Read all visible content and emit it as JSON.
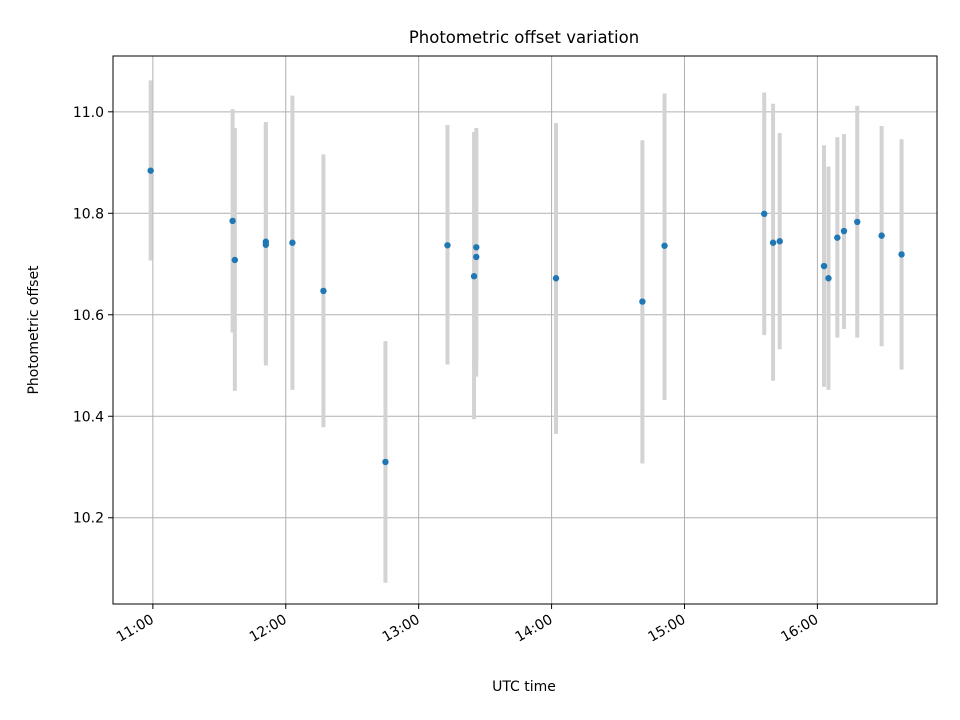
{
  "chart_data": {
    "type": "scatter",
    "title": "Photometric offset variation",
    "xlabel": "UTC time",
    "ylabel": "Photometric offset",
    "xlim": [
      "10:42",
      "16:54"
    ],
    "ylim": [
      10.03,
      11.11
    ],
    "grid": true,
    "x_ticks": [
      "11:00",
      "12:00",
      "13:00",
      "14:00",
      "15:00",
      "16:00"
    ],
    "y_ticks": [
      "10.2",
      "10.4",
      "10.6",
      "10.8",
      "11.0"
    ],
    "colors": {
      "point": "#1f77b4",
      "errorbar": "#d3d3d3",
      "grid": "#b0b0b0"
    },
    "points": [
      {
        "time": "10:59",
        "y": 10.884,
        "low": 10.707,
        "high": 11.062
      },
      {
        "time": "11:36",
        "y": 10.785,
        "low": 10.565,
        "high": 11.005
      },
      {
        "time": "11:37",
        "y": 10.708,
        "low": 10.45,
        "high": 10.968
      },
      {
        "time": "11:51",
        "y": 10.744,
        "low": 10.508,
        "high": 10.98
      },
      {
        "time": "11:51",
        "y": 10.738,
        "low": 10.5,
        "high": 10.976
      },
      {
        "time": "12:03",
        "y": 10.742,
        "low": 10.452,
        "high": 11.032
      },
      {
        "time": "12:17",
        "y": 10.647,
        "low": 10.378,
        "high": 10.916
      },
      {
        "time": "12:45",
        "y": 10.31,
        "low": 10.072,
        "high": 10.548
      },
      {
        "time": "13:13",
        "y": 10.737,
        "low": 10.502,
        "high": 10.974
      },
      {
        "time": "13:25",
        "y": 10.676,
        "low": 10.394,
        "high": 10.96
      },
      {
        "time": "13:26",
        "y": 10.733,
        "low": 10.505,
        "high": 10.968
      },
      {
        "time": "13:26",
        "y": 10.714,
        "low": 10.478,
        "high": 10.962
      },
      {
        "time": "14:02",
        "y": 10.672,
        "low": 10.365,
        "high": 10.978
      },
      {
        "time": "14:41",
        "y": 10.626,
        "low": 10.307,
        "high": 10.944
      },
      {
        "time": "14:51",
        "y": 10.736,
        "low": 10.432,
        "high": 11.036
      },
      {
        "time": "15:36",
        "y": 10.799,
        "low": 10.56,
        "high": 11.038
      },
      {
        "time": "15:40",
        "y": 10.742,
        "low": 10.47,
        "high": 11.016
      },
      {
        "time": "15:43",
        "y": 10.745,
        "low": 10.532,
        "high": 10.958
      },
      {
        "time": "16:03",
        "y": 10.696,
        "low": 10.458,
        "high": 10.934
      },
      {
        "time": "16:05",
        "y": 10.672,
        "low": 10.452,
        "high": 10.892
      },
      {
        "time": "16:09",
        "y": 10.752,
        "low": 10.555,
        "high": 10.95
      },
      {
        "time": "16:12",
        "y": 10.765,
        "low": 10.572,
        "high": 10.956
      },
      {
        "time": "16:18",
        "y": 10.783,
        "low": 10.555,
        "high": 11.012
      },
      {
        "time": "16:29",
        "y": 10.756,
        "low": 10.538,
        "high": 10.972
      },
      {
        "time": "16:38",
        "y": 10.719,
        "low": 10.492,
        "high": 10.946
      }
    ]
  }
}
